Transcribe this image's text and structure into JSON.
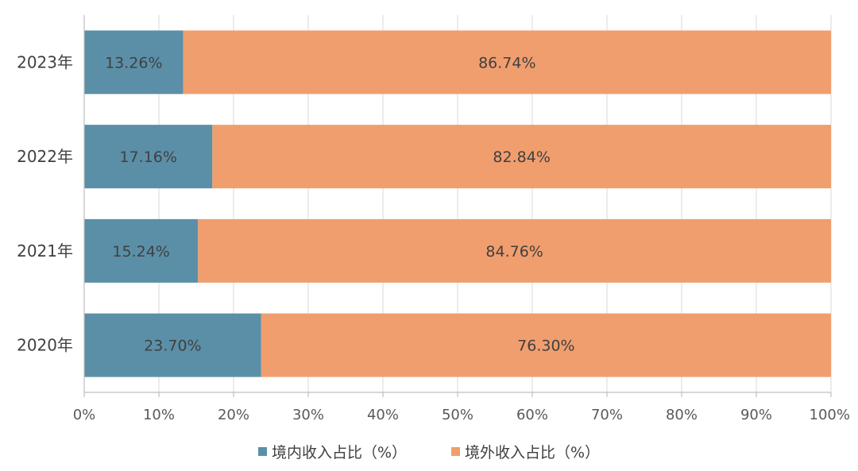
{
  "chart_data": {
    "type": "bar",
    "orientation": "horizontal",
    "stacked": true,
    "categories": [
      "2023年",
      "2022年",
      "2021年",
      "2020年"
    ],
    "series": [
      {
        "name": "境内收入占比（%）",
        "values": [
          13.26,
          17.16,
          15.24,
          23.7
        ],
        "labels": [
          "13.26%",
          "17.16%",
          "15.24%",
          "23.70%"
        ],
        "color": "#5b8fa8"
      },
      {
        "name": "境外收入占比（%）",
        "values": [
          86.74,
          82.84,
          84.76,
          76.3
        ],
        "labels": [
          "86.74%",
          "82.84%",
          "84.76%",
          "76.30%"
        ],
        "color": "#f09e6e"
      }
    ],
    "x_ticks": [
      "0%",
      "10%",
      "20%",
      "30%",
      "40%",
      "50%",
      "60%",
      "70%",
      "80%",
      "90%",
      "100%"
    ],
    "xlim": [
      0,
      100
    ],
    "grid": true,
    "legend_position": "bottom"
  }
}
